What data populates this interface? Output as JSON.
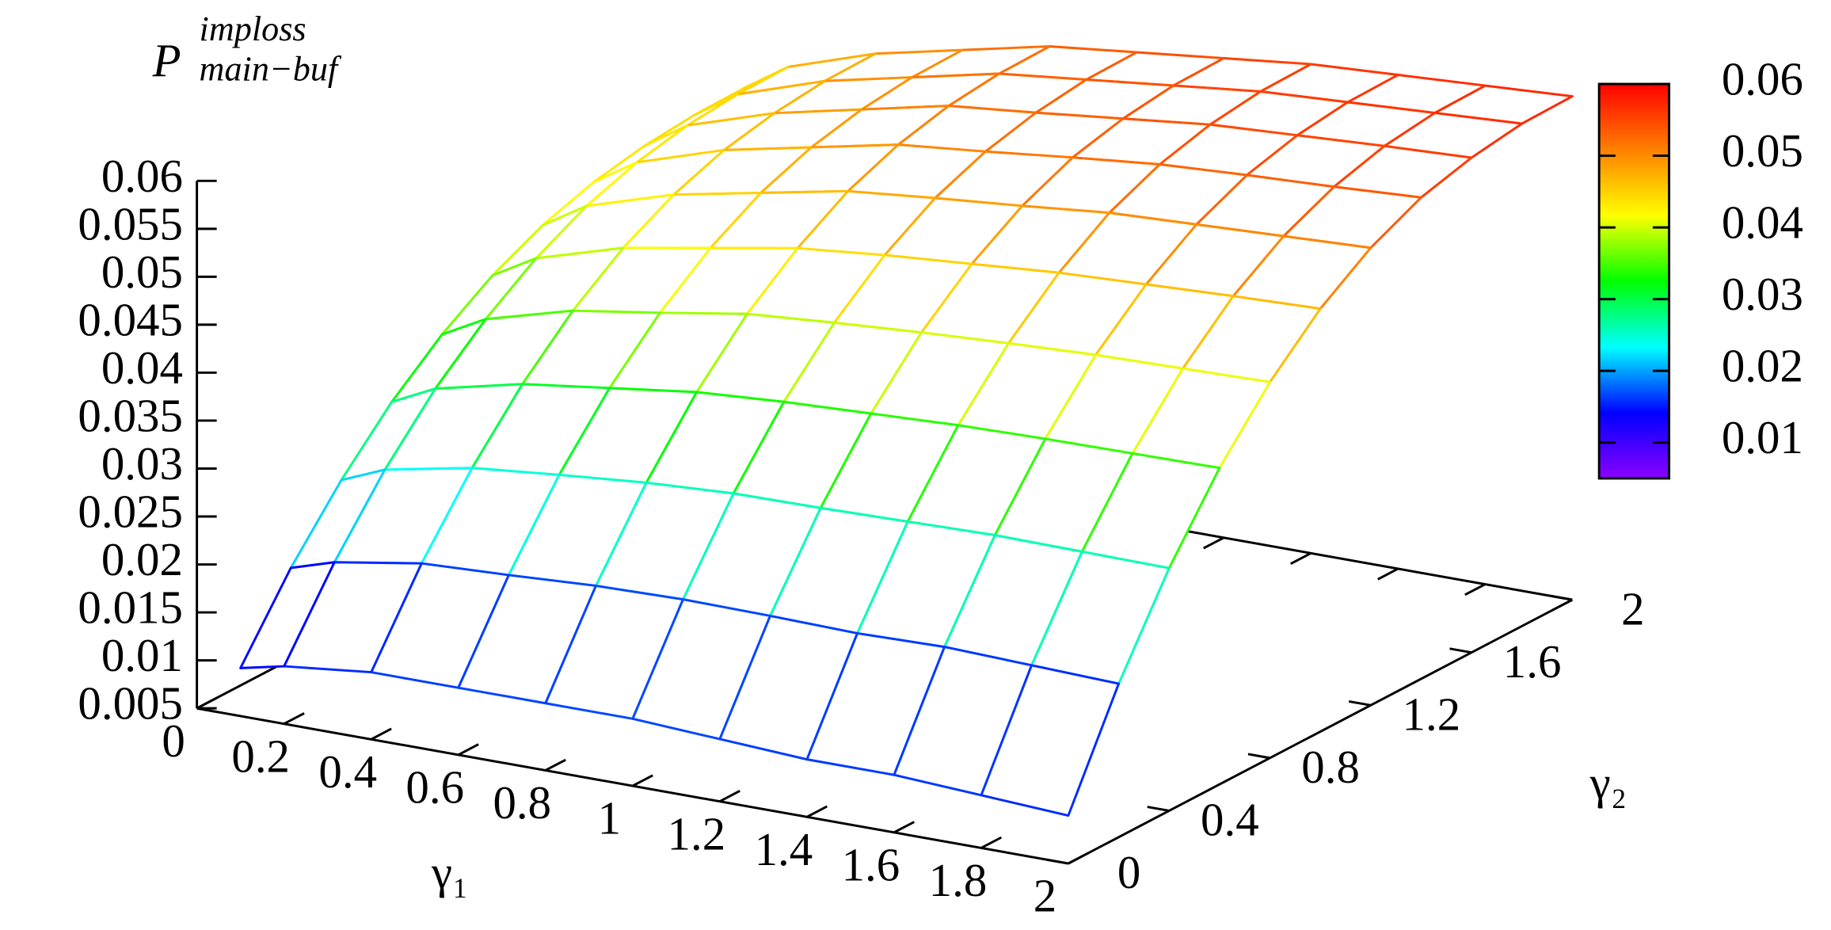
{
  "chart_data": {
    "type": "surface",
    "zlabel": {
      "base": "P",
      "sup": "imploss",
      "sub": "main−buf"
    },
    "xlabel": "γ₁",
    "ylabel": "γ₂",
    "x": [
      0.1,
      0.2,
      0.4,
      0.6,
      0.8,
      1.0,
      1.2,
      1.4,
      1.6,
      1.8,
      2.0
    ],
    "y": [
      0,
      0.2,
      0.4,
      0.6,
      0.8,
      1.0,
      1.2,
      1.4,
      1.6,
      1.8,
      2.0
    ],
    "z": [
      [
        0.01,
        0.011,
        0.012,
        0.012,
        0.012,
        0.012,
        0.0115,
        0.011,
        0.011,
        0.0105,
        0.01
      ],
      [
        0.0177,
        0.0191,
        0.0206,
        0.021,
        0.0215,
        0.0217,
        0.0216,
        0.0214,
        0.0216,
        0.0213,
        0.021
      ],
      [
        0.0241,
        0.026,
        0.0278,
        0.0287,
        0.0295,
        0.03,
        0.0301,
        0.0303,
        0.0305,
        0.0304,
        0.0303
      ],
      [
        0.0295,
        0.0317,
        0.0338,
        0.035,
        0.0362,
        0.0368,
        0.0372,
        0.0376,
        0.0378,
        0.0379,
        0.038
      ],
      [
        0.0338,
        0.0362,
        0.0387,
        0.0401,
        0.0416,
        0.0423,
        0.0429,
        0.0434,
        0.0438,
        0.044,
        0.0442
      ],
      [
        0.0372,
        0.0398,
        0.0425,
        0.0441,
        0.0457,
        0.0466,
        0.0473,
        0.048,
        0.0484,
        0.0488,
        0.0491
      ],
      [
        0.0397,
        0.0425,
        0.0453,
        0.0471,
        0.0489,
        0.0498,
        0.0506,
        0.0515,
        0.0519,
        0.0523,
        0.0527
      ],
      [
        0.0414,
        0.0443,
        0.0472,
        0.0491,
        0.051,
        0.0519,
        0.0529,
        0.0538,
        0.0543,
        0.0547,
        0.0552
      ],
      [
        0.0424,
        0.0454,
        0.0483,
        0.0503,
        0.0523,
        0.0532,
        0.0542,
        0.0552,
        0.0557,
        0.0562,
        0.0566
      ],
      [
        0.0429,
        0.0459,
        0.0489,
        0.0509,
        0.0529,
        0.0539,
        0.0549,
        0.0559,
        0.0564,
        0.0569,
        0.0574
      ],
      [
        0.043,
        0.046,
        0.049,
        0.051,
        0.053,
        0.054,
        0.055,
        0.056,
        0.0565,
        0.057,
        0.0575
      ]
    ],
    "xlim": [
      0,
      2
    ],
    "ylim": [
      0,
      2
    ],
    "zlim": [
      0.005,
      0.06
    ],
    "xticks": [
      0,
      0.2,
      0.4,
      0.6,
      0.8,
      1,
      1.2,
      1.4,
      1.6,
      1.8,
      2
    ],
    "yticks": [
      0,
      0.4,
      0.8,
      1.2,
      1.6,
      2
    ],
    "zticks": [
      0.005,
      0.01,
      0.015,
      0.02,
      0.025,
      0.03,
      0.035,
      0.04,
      0.045,
      0.05,
      0.055,
      0.06
    ],
    "cblim": [
      0.005,
      0.06
    ],
    "cbticks": [
      0.01,
      0.02,
      0.03,
      0.04,
      0.05,
      0.06
    ],
    "palette": [
      "#8a00ff",
      "#0000ff",
      "#00ffff",
      "#00ff00",
      "#ffff00",
      "#ff8000",
      "#ff0000"
    ]
  }
}
